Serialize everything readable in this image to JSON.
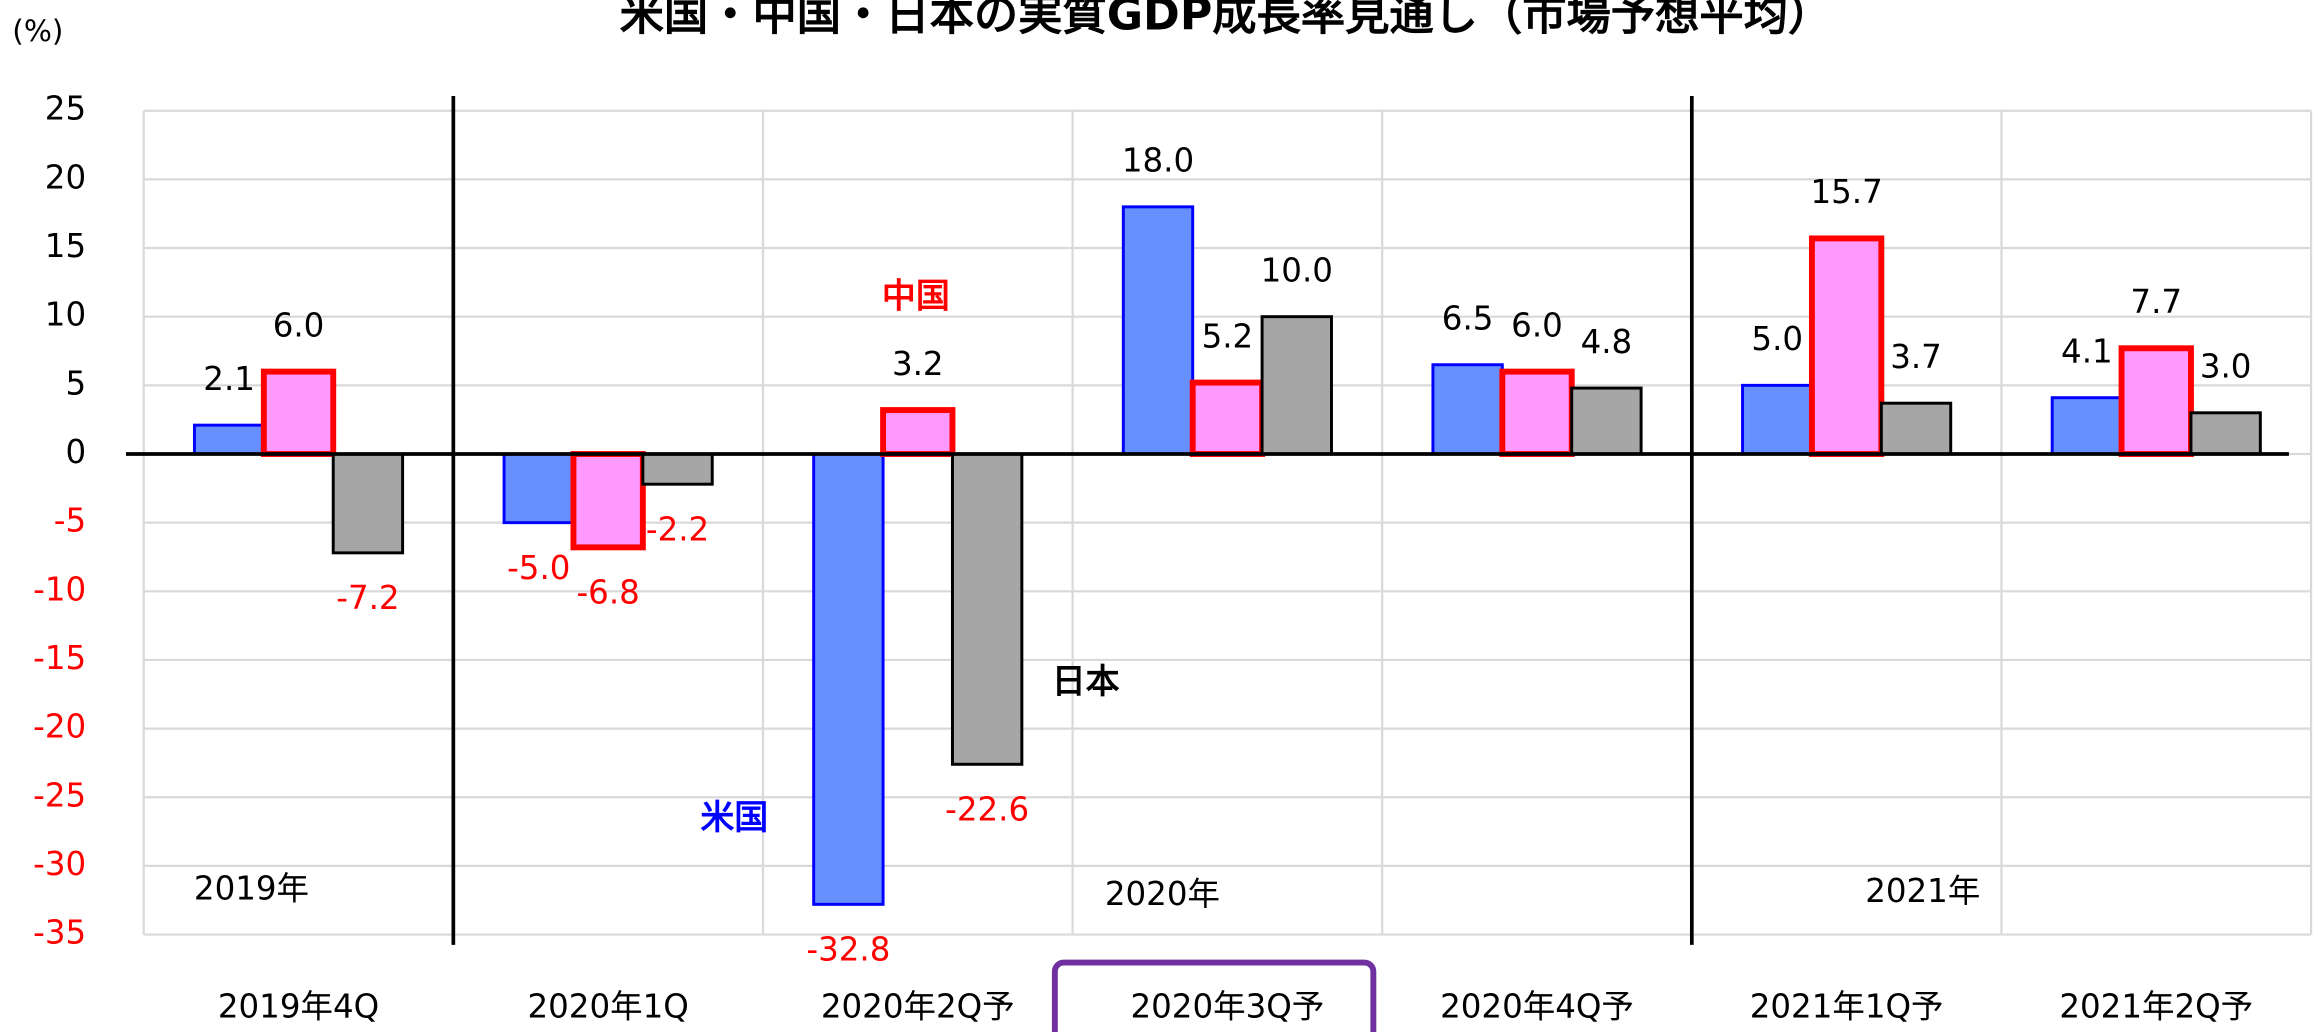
{
  "chart_data": {
    "type": "bar",
    "title": "米国・中国・日本の実質GDP成長率見通し（市場予想平均）",
    "y_unit": "(%)",
    "categories": [
      "2019年4Q",
      "2020年1Q",
      "2020年2Q予",
      "2020年3Q予",
      "2020年4Q予",
      "2021年1Q予",
      "2021年2Q予"
    ],
    "series": [
      {
        "name": "米国",
        "color": "#6690ff",
        "edge": "#0000ff",
        "values": [
          2.1,
          -5.0,
          -32.8,
          18.0,
          6.5,
          5.0,
          4.1
        ],
        "value_labels": [
          "2.1",
          "-5.0",
          "-32.8",
          "18.0",
          "6.5",
          "5.0",
          "4.1"
        ]
      },
      {
        "name": "中国",
        "color": "#ff99ff",
        "edge": "#ff0000",
        "values": [
          6.0,
          -6.8,
          3.2,
          5.2,
          6.0,
          15.7,
          7.7
        ],
        "value_labels": [
          "6.0",
          "-6.8",
          "3.2",
          "5.2",
          "6.0",
          "15.7",
          "7.7"
        ]
      },
      {
        "name": "日本",
        "color": "#a6a6a6",
        "edge": "#000000",
        "values": [
          -7.2,
          -2.2,
          -22.6,
          10.0,
          4.8,
          3.7,
          3.0
        ],
        "value_labels": [
          "-7.2",
          "-2.2",
          "-22.6",
          "10.0",
          "4.8",
          "3.7",
          "3.0"
        ]
      }
    ],
    "year_labels": [
      "2019年",
      "2020年",
      "2021年"
    ],
    "ylim": [
      -35,
      25
    ],
    "yticks": [
      -35,
      -30,
      -25,
      -20,
      -15,
      -10,
      -5,
      0,
      5,
      10,
      15,
      20,
      25
    ],
    "grid": true,
    "negative_color": "#ff0000",
    "highlight_index": 3
  }
}
